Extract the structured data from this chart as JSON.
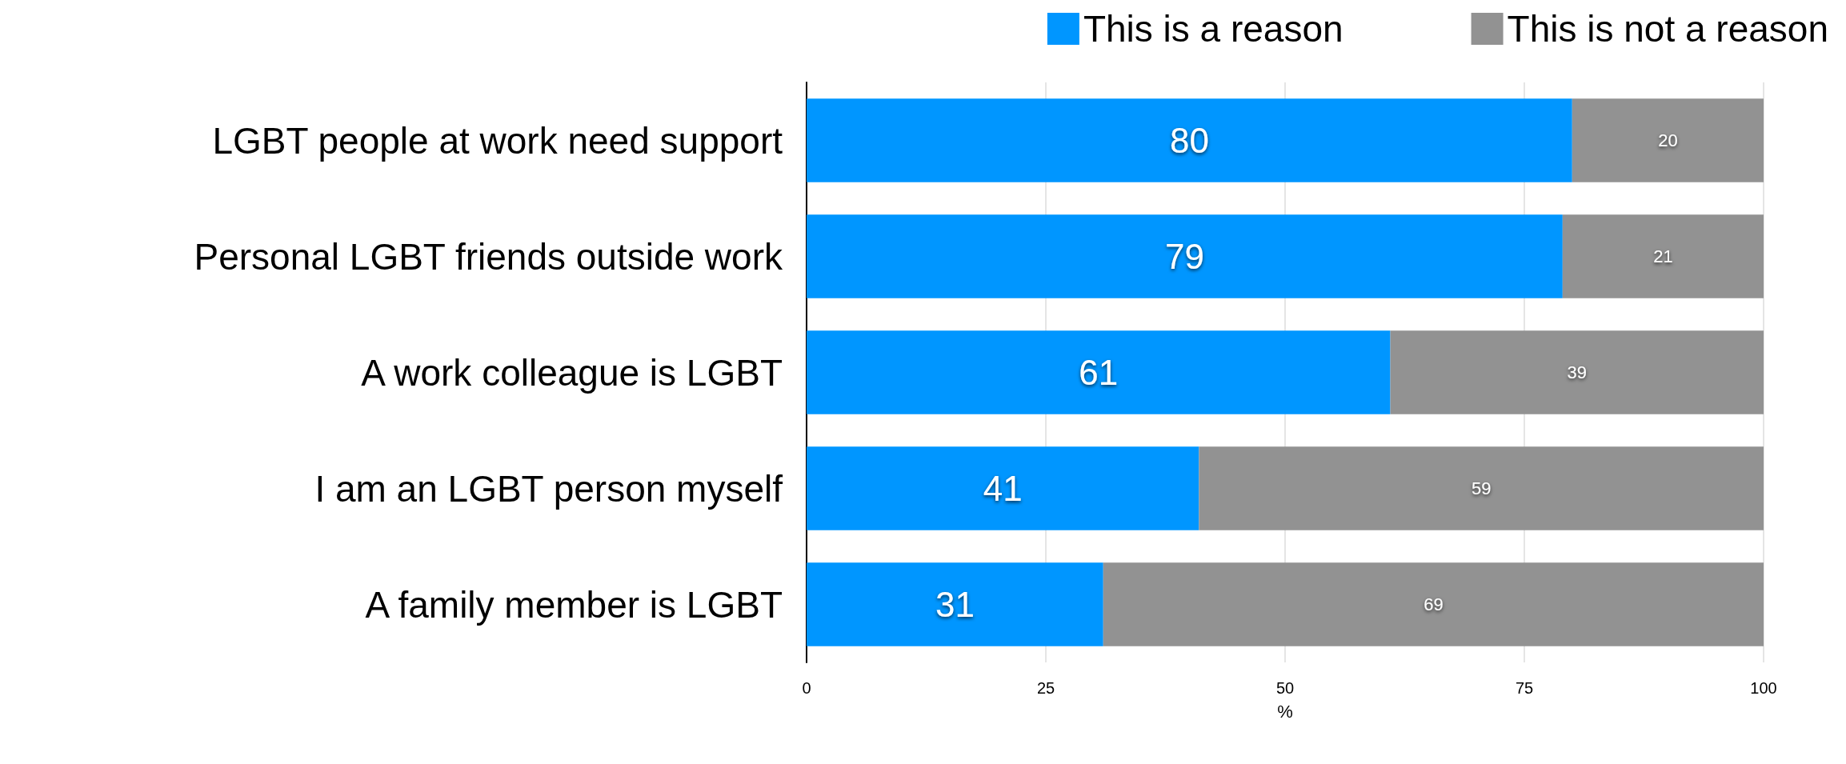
{
  "chart_data": {
    "type": "bar",
    "orientation": "horizontal",
    "stacked": true,
    "xlabel": "%",
    "categories": [
      "LGBT people at work need support",
      "Personal LGBT friends outside work",
      "A work colleague is LGBT",
      "I am an LGBT person myself",
      "A family member is LGBT"
    ],
    "series": [
      {
        "name": "This is a reason",
        "color": "#0096ff",
        "values": [
          80,
          79,
          61,
          41,
          31
        ]
      },
      {
        "name": "This is not a reason",
        "color": "#929292",
        "values": [
          20,
          21,
          39,
          59,
          69
        ]
      }
    ],
    "xlim": [
      0,
      100
    ],
    "xticks": [
      0,
      25,
      50,
      75,
      100
    ],
    "grid": "x",
    "legend": "top right",
    "data_labels": true
  }
}
